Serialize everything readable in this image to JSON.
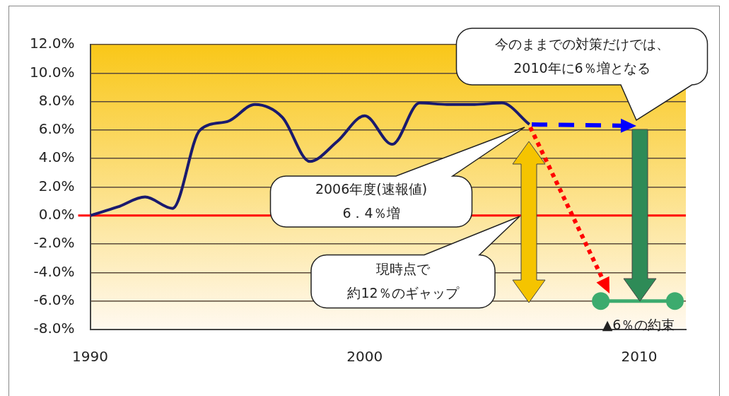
{
  "chart_data": {
    "type": "line",
    "xlim": [
      1990,
      2011.7
    ],
    "xticks": [
      1990,
      2000,
      2010
    ],
    "ylim": [
      -8,
      12
    ],
    "yticks": [
      {
        "value": -8,
        "label": "-8.0%"
      },
      {
        "value": -6,
        "label": "-6.0%"
      },
      {
        "value": -4,
        "label": "-4.0%"
      },
      {
        "value": -2,
        "label": "-2.0%"
      },
      {
        "value": 0,
        "label": "0.0%"
      },
      {
        "value": 2,
        "label": "2.0%"
      },
      {
        "value": 4,
        "label": "4.0%"
      },
      {
        "value": 6,
        "label": "6.0%"
      },
      {
        "value": 8,
        "label": "8.0%"
      },
      {
        "value": 10,
        "label": "10.0%"
      },
      {
        "value": 12,
        "label": "12.0%"
      }
    ],
    "grid": "y",
    "legend": false,
    "series": [
      {
        "color": "#1a1a6e",
        "marker": "none",
        "line_style": "solid",
        "x": [
          1990,
          1991,
          1992,
          1993,
          1994,
          1995,
          1996,
          1997,
          1998,
          1999,
          2000,
          2001,
          2002,
          2003,
          2004,
          2005,
          2006
        ],
        "values": [
          0,
          0.6,
          1.3,
          0.5,
          6.0,
          6.6,
          7.8,
          6.9,
          3.8,
          5.2,
          7.0,
          5.0,
          7.9,
          7.8,
          7.8,
          7.9,
          6.4
        ]
      },
      {
        "color": "#3cab6e",
        "marker": "circle",
        "line_style": "solid",
        "x": [
          2008.6,
          2011.3
        ],
        "values": [
          -6,
          -6
        ]
      }
    ],
    "ref_lines": [
      {
        "axis": "y",
        "value": 0,
        "color": "#ff0000"
      }
    ],
    "annotations": [
      "今のままでの対策だけでは、2010年に6％増となる",
      "2006年度(速報値)6．4％増",
      "現時点で約12％のギャップ",
      "▲6％の約束"
    ]
  }
}
